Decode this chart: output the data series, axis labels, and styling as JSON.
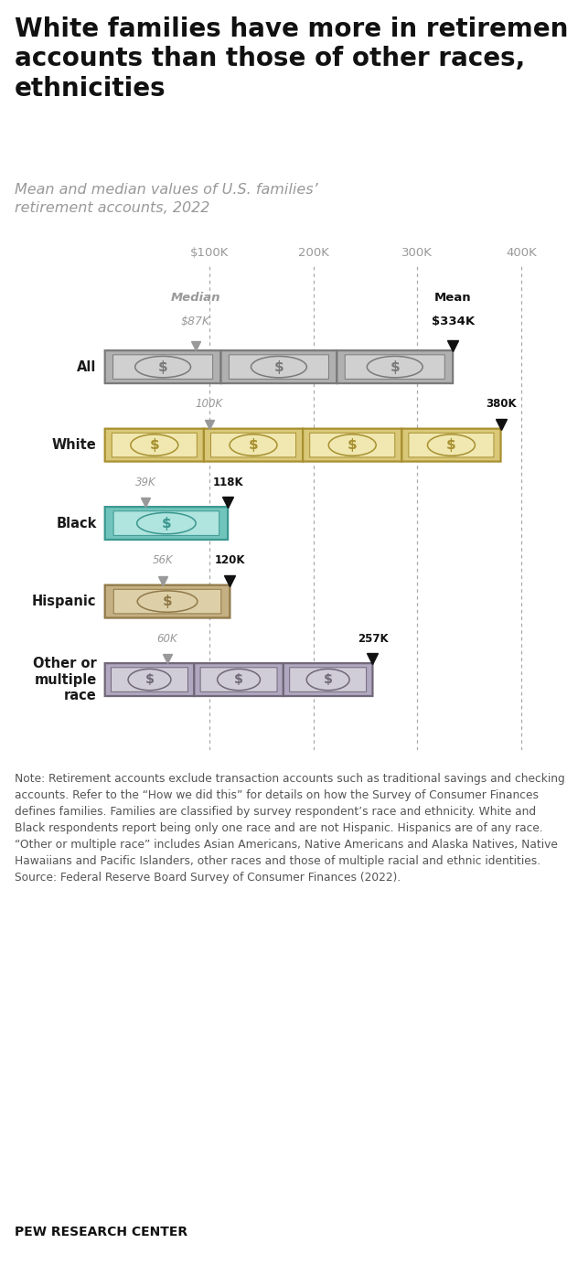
{
  "title": "White families have more in retirement\naccounts than those of other races,\nethnicities",
  "subtitle": "Mean and median values of U.S. families’\nretirement accounts, 2022",
  "note": "Note: Retirement accounts exclude transaction accounts such as traditional savings and checking accounts. Refer to the “How we did this” for details on how the Survey of Consumer Finances defines families. Families are classified by survey respondent’s race and ethnicity. White and Black respondents report being only one race and are not Hispanic. Hispanics are of any race. “Other or multiple race” includes Asian Americans, Native Americans and Alaska Natives, Native Hawaiians and Pacific Islanders, other races and those of multiple racial and ethnic identities.\nSource: Federal Reserve Board Survey of Consumer Finances (2022).",
  "footer": "PEW RESEARCH CENTER",
  "x_ticks": [
    100,
    200,
    300,
    400
  ],
  "x_tick_labels": [
    "$100K",
    "200K",
    "300K",
    "400K"
  ],
  "xlim_max": 430,
  "groups": [
    "All",
    "White",
    "Black",
    "Hispanic",
    "Other or\nmultiple\nrace"
  ],
  "medians": [
    87,
    100,
    39,
    56,
    60
  ],
  "means": [
    334,
    380,
    118,
    120,
    257
  ],
  "median_labels": [
    "$87K",
    "100K",
    "39K",
    "56K",
    "60K"
  ],
  "mean_labels": [
    "$334K",
    "380K",
    "118K",
    "120K",
    "257K"
  ],
  "bar_face_colors": [
    "#b0b0b0",
    "#d9c878",
    "#70c4bc",
    "#c4b082",
    "#b0a8c0"
  ],
  "bar_inner_colors": [
    "#d0d0d0",
    "#f0e8b0",
    "#b0e4de",
    "#ddd0a8",
    "#d0ccd8"
  ],
  "bar_border_colors": [
    "#7a7a7a",
    "#a89030",
    "#3a9890",
    "#907848",
    "#706878"
  ],
  "background_color": "#ffffff",
  "grid_color": "#aaaaaa",
  "median_color": "#999999",
  "mean_color": "#111111",
  "label_color": "#1a1a1a",
  "note_color": "#555555",
  "top_line_color": "#cccccc",
  "bot_line_color": "#cccccc"
}
